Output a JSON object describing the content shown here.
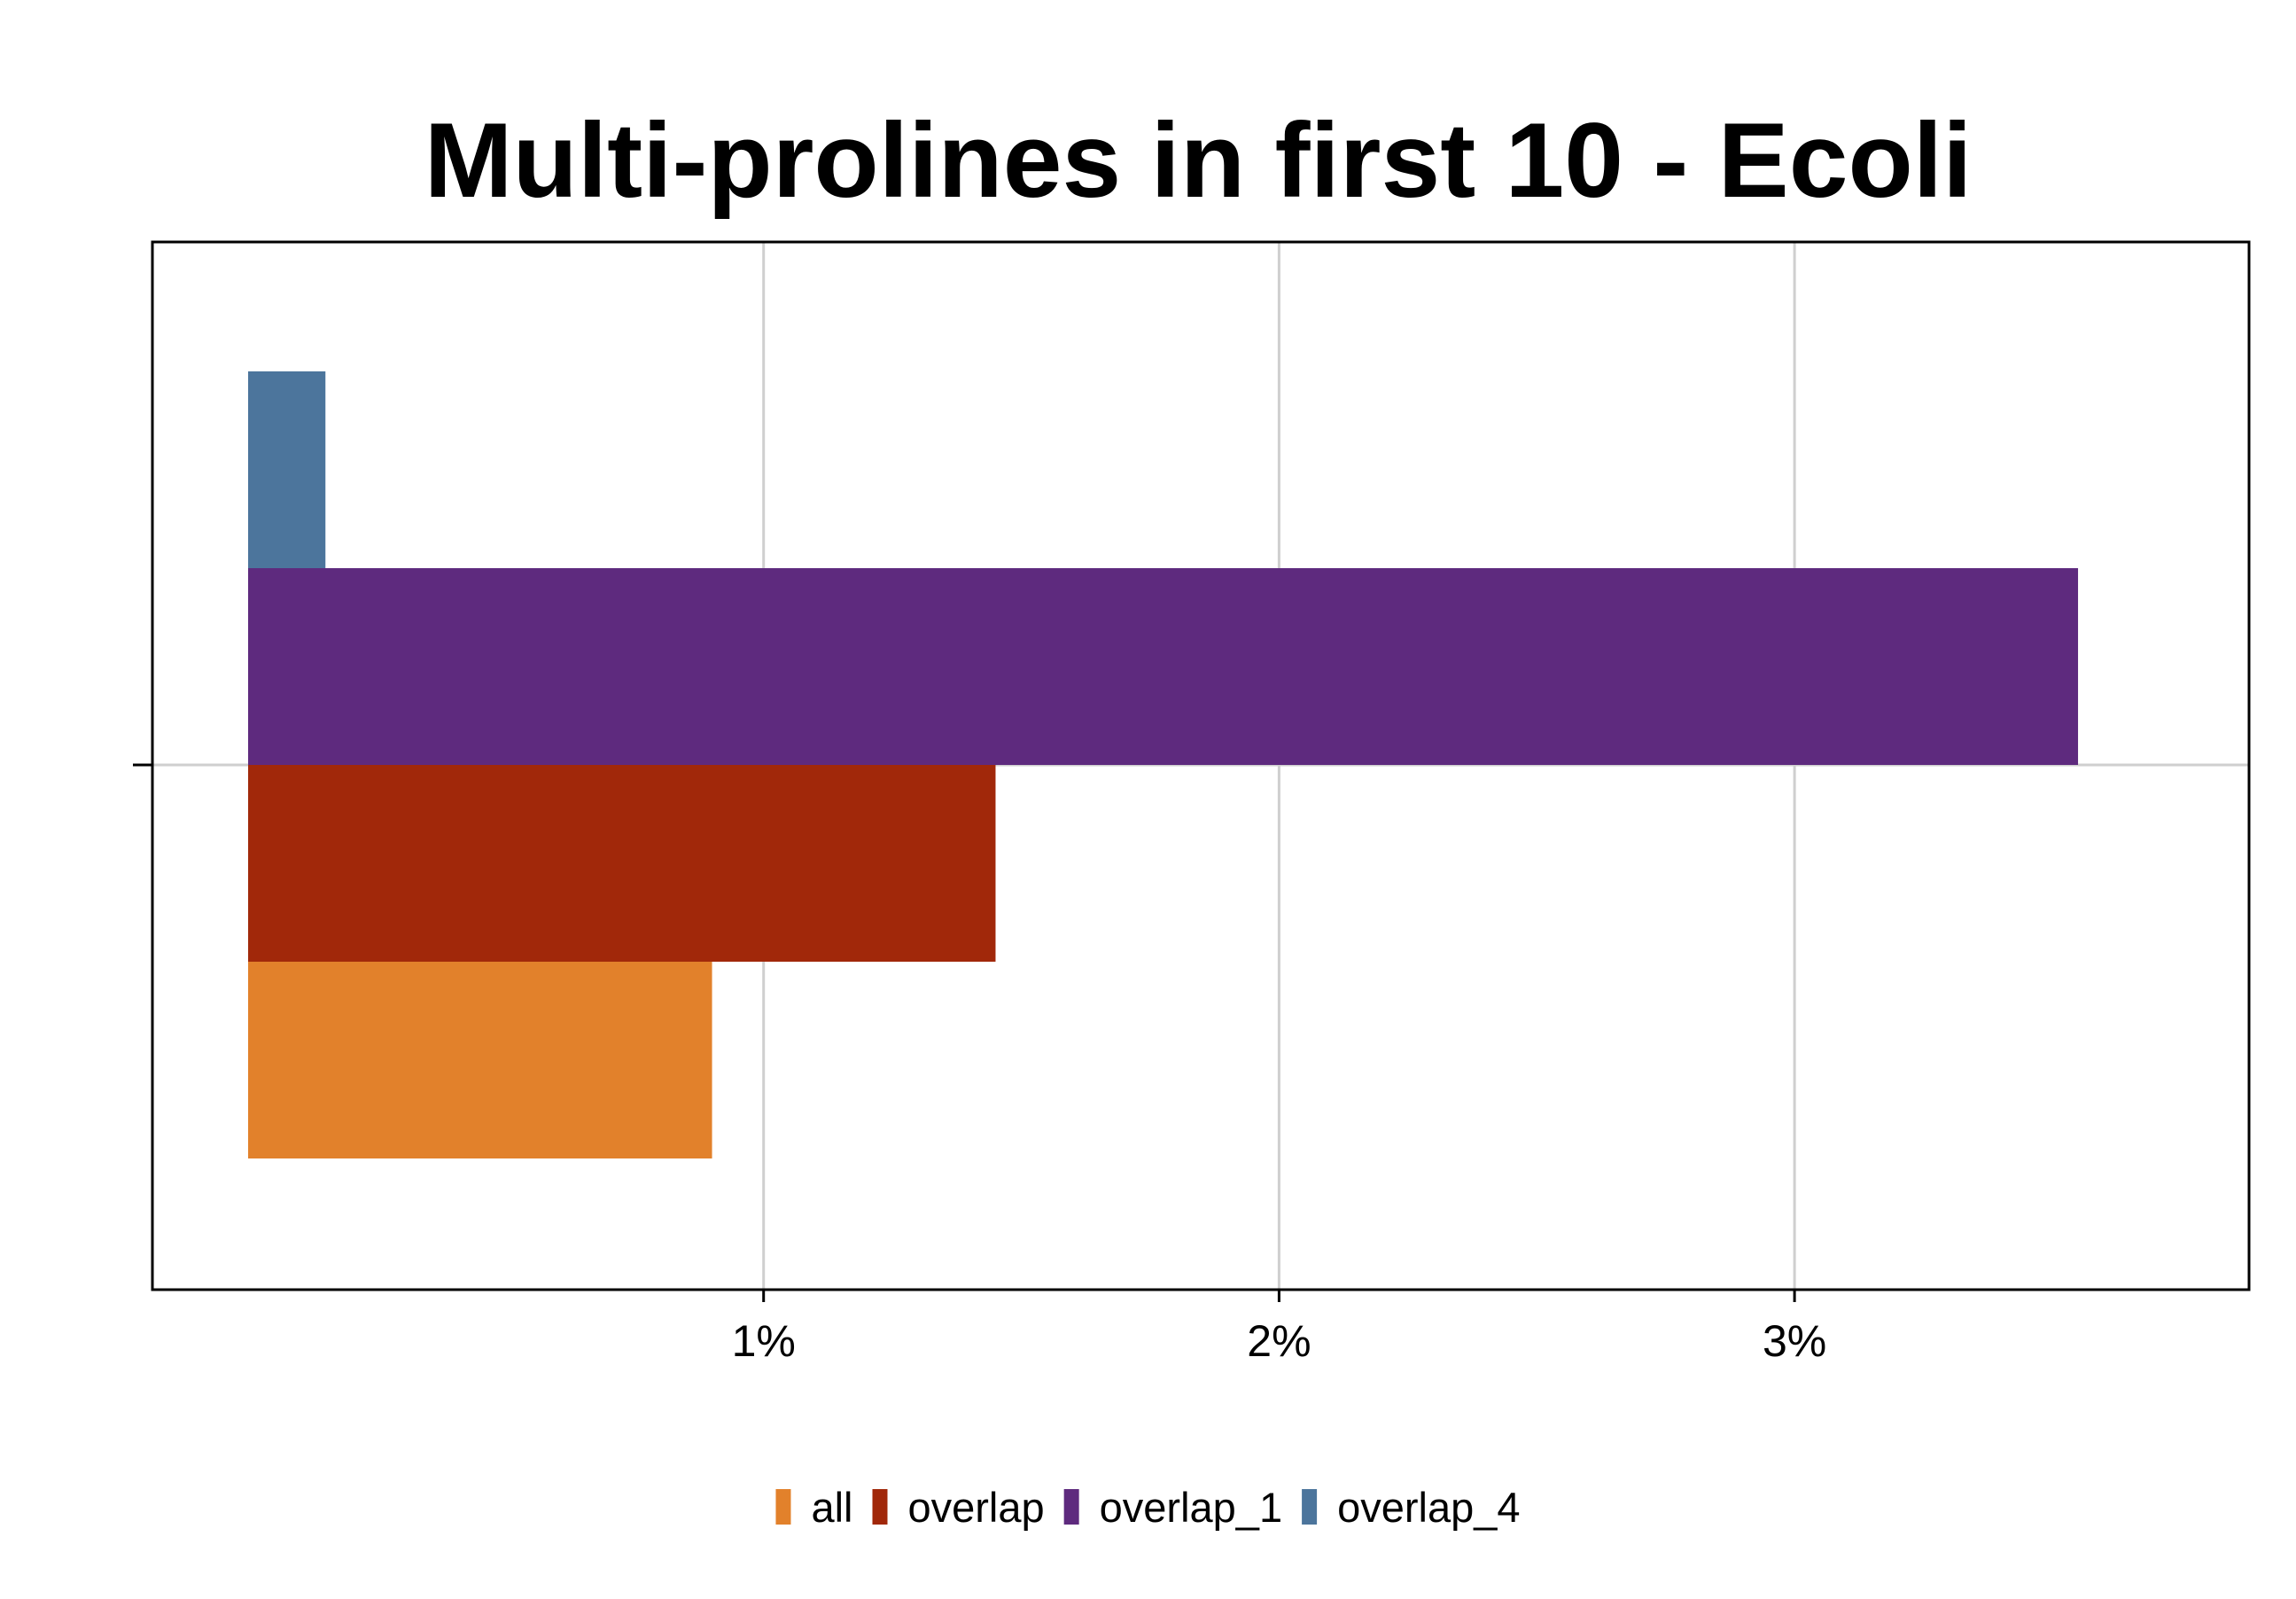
{
  "chart_data": {
    "type": "bar",
    "orientation": "horizontal",
    "title": "Multi-prolines in first 10 - Ecoli",
    "xlabel": "",
    "ylabel": "",
    "categories": [
      ""
    ],
    "series": [
      {
        "name": "all",
        "values": [
          0.9
        ],
        "color": "#E2812B"
      },
      {
        "name": "overlap",
        "values": [
          1.45
        ],
        "color": "#A1280A"
      },
      {
        "name": "overlap_1",
        "values": [
          3.55
        ],
        "color": "#5E2A7E"
      },
      {
        "name": "overlap_4",
        "values": [
          0.15
        ],
        "color": "#4C759C"
      }
    ],
    "x_baseline": 0,
    "xlim": [
      0,
      3.75
    ],
    "xticks": [
      1,
      2,
      3
    ],
    "xtick_labels": [
      "1%",
      "2%",
      "3%"
    ],
    "grid": true,
    "legend_position": "bottom"
  }
}
